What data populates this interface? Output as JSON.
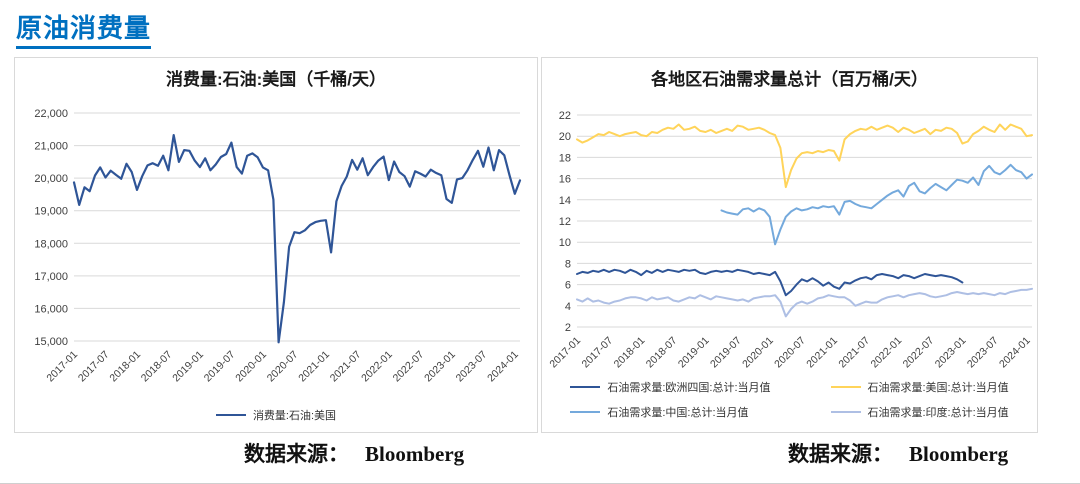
{
  "page": {
    "header_title": "原油消费量",
    "source_label": "数据来源：",
    "source_value": "Bloomberg"
  },
  "colors": {
    "header_blue": "#0070C0",
    "grid": "#D9D9D9",
    "axis_text": "#404040",
    "dark_blue": "#2F5597",
    "yellow": "#FFD45A",
    "light_blue": "#74A9DC",
    "lavender": "#AEBFE4"
  },
  "chart_data": [
    {
      "type": "line",
      "title": "消费量:石油:美国（千桶/天）",
      "xlabel": "",
      "ylabel": "",
      "grid": true,
      "legend_position": "bottom",
      "x_months_total": 86,
      "x_tick_interval": 6,
      "x_tick_labels": [
        "2017-01",
        "2017-07",
        "2018-01",
        "2018-07",
        "2019-01",
        "2019-07",
        "2020-01",
        "2020-07",
        "2021-01",
        "2021-07",
        "2022-01",
        "2022-07",
        "2023-01",
        "2023-07",
        "2024-01"
      ],
      "ylim": [
        15000,
        22000
      ],
      "y_tick_step": 1000,
      "y_tick_labels": [
        "15,000",
        "16,000",
        "17,000",
        "18,000",
        "19,000",
        "20,000",
        "21,000",
        "22,000"
      ],
      "series": [
        {
          "name": "消费量:石油:美国",
          "color": "#2F5597",
          "values": [
            19870,
            19180,
            19720,
            19600,
            20080,
            20330,
            20020,
            20230,
            20100,
            19980,
            20440,
            20190,
            19640,
            20060,
            20390,
            20460,
            20380,
            20690,
            20240,
            21320,
            20500,
            20860,
            20840,
            20540,
            20340,
            20610,
            20240,
            20420,
            20650,
            20740,
            21090,
            20340,
            20140,
            20690,
            20760,
            20640,
            20330,
            20240,
            19340,
            14960,
            16190,
            17890,
            18340,
            18310,
            18400,
            18560,
            18650,
            18690,
            18710,
            17720,
            19290,
            19760,
            20050,
            20560,
            20260,
            20610,
            20090,
            20340,
            20540,
            20660,
            19940,
            20510,
            20190,
            20060,
            19740,
            20210,
            20140,
            20050,
            20260,
            20160,
            20090,
            19360,
            19240,
            19960,
            20000,
            20240,
            20560,
            20840,
            20350,
            20940,
            20240,
            20860,
            20700,
            20090,
            19520,
            19930
          ]
        }
      ]
    },
    {
      "type": "line",
      "title": "各地区石油需求量总计（百万桶/天）",
      "xlabel": "",
      "ylabel": "",
      "grid": true,
      "legend_position": "bottom",
      "x_months_total": 86,
      "x_tick_interval": 6,
      "x_tick_labels": [
        "2017-01",
        "2017-07",
        "2018-01",
        "2018-07",
        "2019-01",
        "2019-07",
        "2020-01",
        "2020-07",
        "2021-01",
        "2021-07",
        "2022-01",
        "2022-07",
        "2023-01",
        "2023-07",
        "2024-01"
      ],
      "ylim": [
        2,
        22
      ],
      "y_tick_step": 2,
      "y_tick_labels": [
        "2",
        "4",
        "6",
        "8",
        "10",
        "12",
        "14",
        "16",
        "18",
        "20",
        "22"
      ],
      "series": [
        {
          "name": "石油需求量:欧洲四国:总计:当月值",
          "color": "#2F5597",
          "values": [
            7.0,
            7.2,
            7.1,
            7.3,
            7.2,
            7.4,
            7.2,
            7.4,
            7.3,
            7.1,
            7.4,
            7.2,
            6.9,
            7.3,
            7.1,
            7.4,
            7.2,
            7.4,
            7.3,
            7.2,
            7.4,
            7.3,
            7.4,
            7.1,
            7.0,
            7.2,
            7.3,
            7.2,
            7.3,
            7.2,
            7.4,
            7.3,
            7.2,
            7.0,
            7.1,
            7.0,
            6.9,
            7.2,
            6.3,
            5.0,
            5.4,
            6.0,
            6.5,
            6.3,
            6.6,
            6.3,
            5.9,
            6.2,
            5.8,
            5.6,
            6.2,
            6.1,
            6.4,
            6.6,
            6.7,
            6.5,
            6.9,
            7.0,
            6.9,
            6.8,
            6.6,
            6.9,
            6.8,
            6.6,
            6.8,
            7.0,
            6.9,
            6.8,
            6.9,
            6.8,
            6.7,
            6.5,
            6.2,
            null,
            null,
            null,
            null,
            null,
            null,
            null,
            null,
            null,
            null,
            null,
            null,
            null
          ]
        },
        {
          "name": "石油需求量:美国:总计:当月值",
          "color": "#FFD45A",
          "values": [
            19.7,
            19.4,
            19.6,
            19.9,
            20.2,
            20.1,
            20.4,
            20.2,
            20.0,
            20.2,
            20.3,
            20.4,
            20.1,
            20.0,
            20.4,
            20.3,
            20.6,
            20.8,
            20.7,
            21.1,
            20.6,
            20.7,
            20.9,
            20.5,
            20.4,
            20.6,
            20.3,
            20.5,
            20.7,
            20.5,
            21.0,
            20.9,
            20.6,
            20.7,
            20.8,
            20.6,
            20.3,
            20.1,
            18.9,
            15.2,
            16.8,
            17.9,
            18.4,
            18.5,
            18.4,
            18.6,
            18.5,
            18.7,
            18.6,
            17.7,
            19.7,
            20.2,
            20.5,
            20.7,
            20.6,
            20.9,
            20.6,
            20.8,
            21.0,
            20.8,
            20.4,
            20.8,
            20.6,
            20.3,
            20.5,
            20.7,
            20.2,
            20.6,
            20.5,
            20.8,
            20.7,
            20.3,
            19.3,
            19.5,
            20.2,
            20.5,
            20.9,
            20.6,
            20.4,
            21.1,
            20.6,
            21.1,
            20.9,
            20.7,
            20.0,
            20.1
          ]
        },
        {
          "name": "石油需求量:中国:总计:当月值",
          "color": "#74A9DC",
          "values": [
            null,
            null,
            null,
            null,
            null,
            null,
            null,
            null,
            null,
            null,
            null,
            null,
            null,
            null,
            null,
            null,
            null,
            null,
            null,
            null,
            null,
            null,
            null,
            null,
            null,
            null,
            null,
            13.0,
            12.8,
            12.7,
            12.6,
            13.1,
            13.2,
            12.9,
            13.2,
            13.0,
            12.4,
            9.8,
            11.2,
            12.4,
            12.9,
            13.2,
            13.0,
            13.1,
            13.3,
            13.2,
            13.4,
            13.3,
            13.4,
            12.6,
            13.8,
            13.9,
            13.6,
            13.4,
            13.3,
            13.2,
            13.6,
            14.0,
            14.4,
            14.7,
            14.9,
            14.3,
            15.3,
            15.6,
            14.8,
            14.6,
            15.1,
            15.5,
            15.2,
            14.9,
            15.4,
            15.9,
            15.8,
            15.6,
            16.1,
            15.4,
            16.7,
            17.2,
            16.6,
            16.4,
            16.8,
            17.3,
            16.8,
            16.6,
            16.0,
            16.4
          ]
        },
        {
          "name": "石油需求量:印度:总计:当月值",
          "color": "#AEBFE4",
          "values": [
            4.6,
            4.4,
            4.7,
            4.4,
            4.5,
            4.3,
            4.2,
            4.4,
            4.5,
            4.7,
            4.8,
            4.8,
            4.7,
            4.5,
            4.8,
            4.6,
            4.7,
            4.8,
            4.5,
            4.4,
            4.6,
            4.8,
            4.7,
            5.0,
            4.8,
            4.6,
            4.9,
            4.8,
            4.7,
            4.6,
            4.5,
            4.6,
            4.4,
            4.7,
            4.8,
            4.9,
            4.9,
            5.0,
            4.4,
            3.0,
            3.7,
            4.2,
            4.4,
            4.2,
            4.4,
            4.7,
            4.8,
            5.0,
            4.9,
            4.8,
            4.8,
            4.5,
            4.0,
            4.2,
            4.4,
            4.3,
            4.3,
            4.6,
            4.8,
            4.9,
            5.0,
            4.8,
            5.0,
            5.1,
            5.2,
            5.1,
            4.9,
            4.8,
            4.9,
            5.0,
            5.2,
            5.3,
            5.2,
            5.1,
            5.2,
            5.1,
            5.2,
            5.1,
            5.0,
            5.2,
            5.1,
            5.3,
            5.4,
            5.5,
            5.5,
            5.6
          ]
        }
      ]
    }
  ]
}
